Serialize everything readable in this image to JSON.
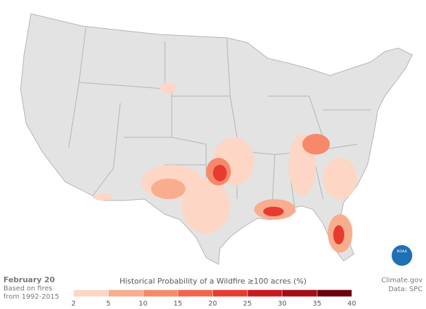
{
  "header": {
    "date": "February 20",
    "note_line1": "Based on fires",
    "note_line2": "from 1992-2015"
  },
  "legend": {
    "title": "Historical Probability of a Wildfire ≥100 acres (%)",
    "ticks": [
      2,
      5,
      10,
      15,
      20,
      25,
      30,
      35,
      40
    ],
    "colors": [
      "#fdd6c6",
      "#f9ad8f",
      "#f6896a",
      "#f1654c",
      "#e63b2e",
      "#c8191e",
      "#a30e16",
      "#6b0010"
    ]
  },
  "credits": {
    "source": "Climate.gov",
    "data": "Data: SPC",
    "logo": "NOAA"
  }
}
